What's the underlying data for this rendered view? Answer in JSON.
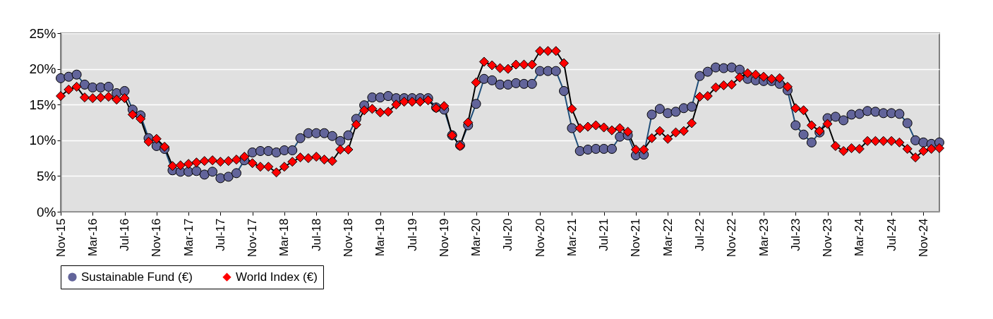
{
  "chart_data": {
    "type": "line",
    "categories": [
      "Nov-15",
      null,
      null,
      null,
      "Mar-16",
      null,
      null,
      null,
      "Jul-16",
      null,
      null,
      null,
      "Nov-16",
      null,
      null,
      null,
      "Mar-17",
      null,
      null,
      null,
      "Jul-17",
      null,
      null,
      null,
      "Nov-17",
      null,
      null,
      null,
      "Mar-18",
      null,
      null,
      null,
      "Jul-18",
      null,
      null,
      null,
      "Nov-18",
      null,
      null,
      null,
      "Mar-19",
      null,
      null,
      null,
      "Jul-19",
      null,
      null,
      null,
      "Nov-19",
      null,
      null,
      null,
      "Mar-20",
      null,
      null,
      null,
      "Jul-20",
      null,
      null,
      null,
      "Nov-20",
      null,
      null,
      null,
      "Mar-21",
      null,
      null,
      null,
      "Jul-21",
      null,
      null,
      null,
      "Nov-21",
      null,
      null,
      null,
      "Mar-22",
      null,
      null,
      null,
      "Jul-22",
      null,
      null,
      null,
      "Nov-22",
      null,
      null,
      null,
      "Mar-23",
      null,
      null,
      null,
      "Jul-23",
      null,
      null,
      null,
      "Nov-23",
      null,
      null,
      null,
      "Mar-24",
      null,
      null,
      null,
      "Jul-24",
      null,
      null,
      null,
      "Nov-24",
      null,
      null
    ],
    "series": [
      {
        "name": "Sustainable Fund (€)",
        "color": "#62649a",
        "marker": "circle",
        "values": [
          18.7,
          18.9,
          19.2,
          17.8,
          17.4,
          17.4,
          17.5,
          16.6,
          16.9,
          14.3,
          13.5,
          10.3,
          9.2,
          8.8,
          5.8,
          5.6,
          5.6,
          5.7,
          5.2,
          5.6,
          4.7,
          4.9,
          5.4,
          7.2,
          8.3,
          8.5,
          8.5,
          8.3,
          8.6,
          8.6,
          10.3,
          11.0,
          11.0,
          11.0,
          10.6,
          9.9,
          10.7,
          13.0,
          14.9,
          16.0,
          16.0,
          16.2,
          15.9,
          15.9,
          15.9,
          15.9,
          15.9,
          14.6,
          14.3,
          10.7,
          9.3,
          12.1,
          15.1,
          18.6,
          18.4,
          17.8,
          17.8,
          18.0,
          17.9,
          17.9,
          19.7,
          19.7,
          19.7,
          16.9,
          11.7,
          8.5,
          8.7,
          8.8,
          8.8,
          8.8,
          10.5,
          10.7,
          7.9,
          8.0,
          13.6,
          14.4,
          13.8,
          14.0,
          14.5,
          14.7,
          19.0,
          19.6,
          20.2,
          20.1,
          20.2,
          19.9,
          18.6,
          18.4,
          18.3,
          18.3,
          17.9,
          17.0,
          12.1,
          10.8,
          9.7,
          11.1,
          13.1,
          13.3,
          12.8,
          13.6,
          13.7,
          14.1,
          14.0,
          13.8,
          13.8,
          13.7,
          12.4,
          10.0,
          9.7,
          9.5,
          9.7
        ]
      },
      {
        "name": "World Index (€)",
        "color": "#ff0000",
        "marker": "diamond",
        "values": [
          16.2,
          17.1,
          17.5,
          16.0,
          15.9,
          16.0,
          16.1,
          15.7,
          15.9,
          13.6,
          13.0,
          9.8,
          10.2,
          9.1,
          6.4,
          6.5,
          6.7,
          6.9,
          7.1,
          7.2,
          7.0,
          7.1,
          7.3,
          7.7,
          6.8,
          6.3,
          6.3,
          5.5,
          6.3,
          7.0,
          7.6,
          7.5,
          7.7,
          7.3,
          7.1,
          8.7,
          8.7,
          12.2,
          14.2,
          14.4,
          13.9,
          14.0,
          15.0,
          15.4,
          15.4,
          15.4,
          15.6,
          14.5,
          14.8,
          10.7,
          9.2,
          12.5,
          18.1,
          21.0,
          20.5,
          20.1,
          20.0,
          20.6,
          20.6,
          20.6,
          22.5,
          22.5,
          22.5,
          20.8,
          14.4,
          11.7,
          11.9,
          12.1,
          11.8,
          11.4,
          11.7,
          11.2,
          8.7,
          8.7,
          10.3,
          11.3,
          10.2,
          11.1,
          11.3,
          12.4,
          16.1,
          16.2,
          17.4,
          17.7,
          17.8,
          18.8,
          19.4,
          19.2,
          18.9,
          18.6,
          18.7,
          17.5,
          14.5,
          14.2,
          12.1,
          11.3,
          12.3,
          9.2,
          8.5,
          8.9,
          8.8,
          9.9,
          9.9,
          9.9,
          9.9,
          9.7,
          8.8,
          7.6,
          8.5,
          8.8,
          8.9
        ]
      }
    ],
    "ylim": [
      0,
      25
    ],
    "yticks": [
      {
        "value": 0,
        "label": "0%"
      },
      {
        "value": 5,
        "label": "5%"
      },
      {
        "value": 10,
        "label": "10%"
      },
      {
        "value": 15,
        "label": "15%"
      },
      {
        "value": 20,
        "label": "20%"
      },
      {
        "value": 25,
        "label": "25%"
      }
    ],
    "grid": "y",
    "legend": "bottom",
    "line_style": "solid"
  }
}
